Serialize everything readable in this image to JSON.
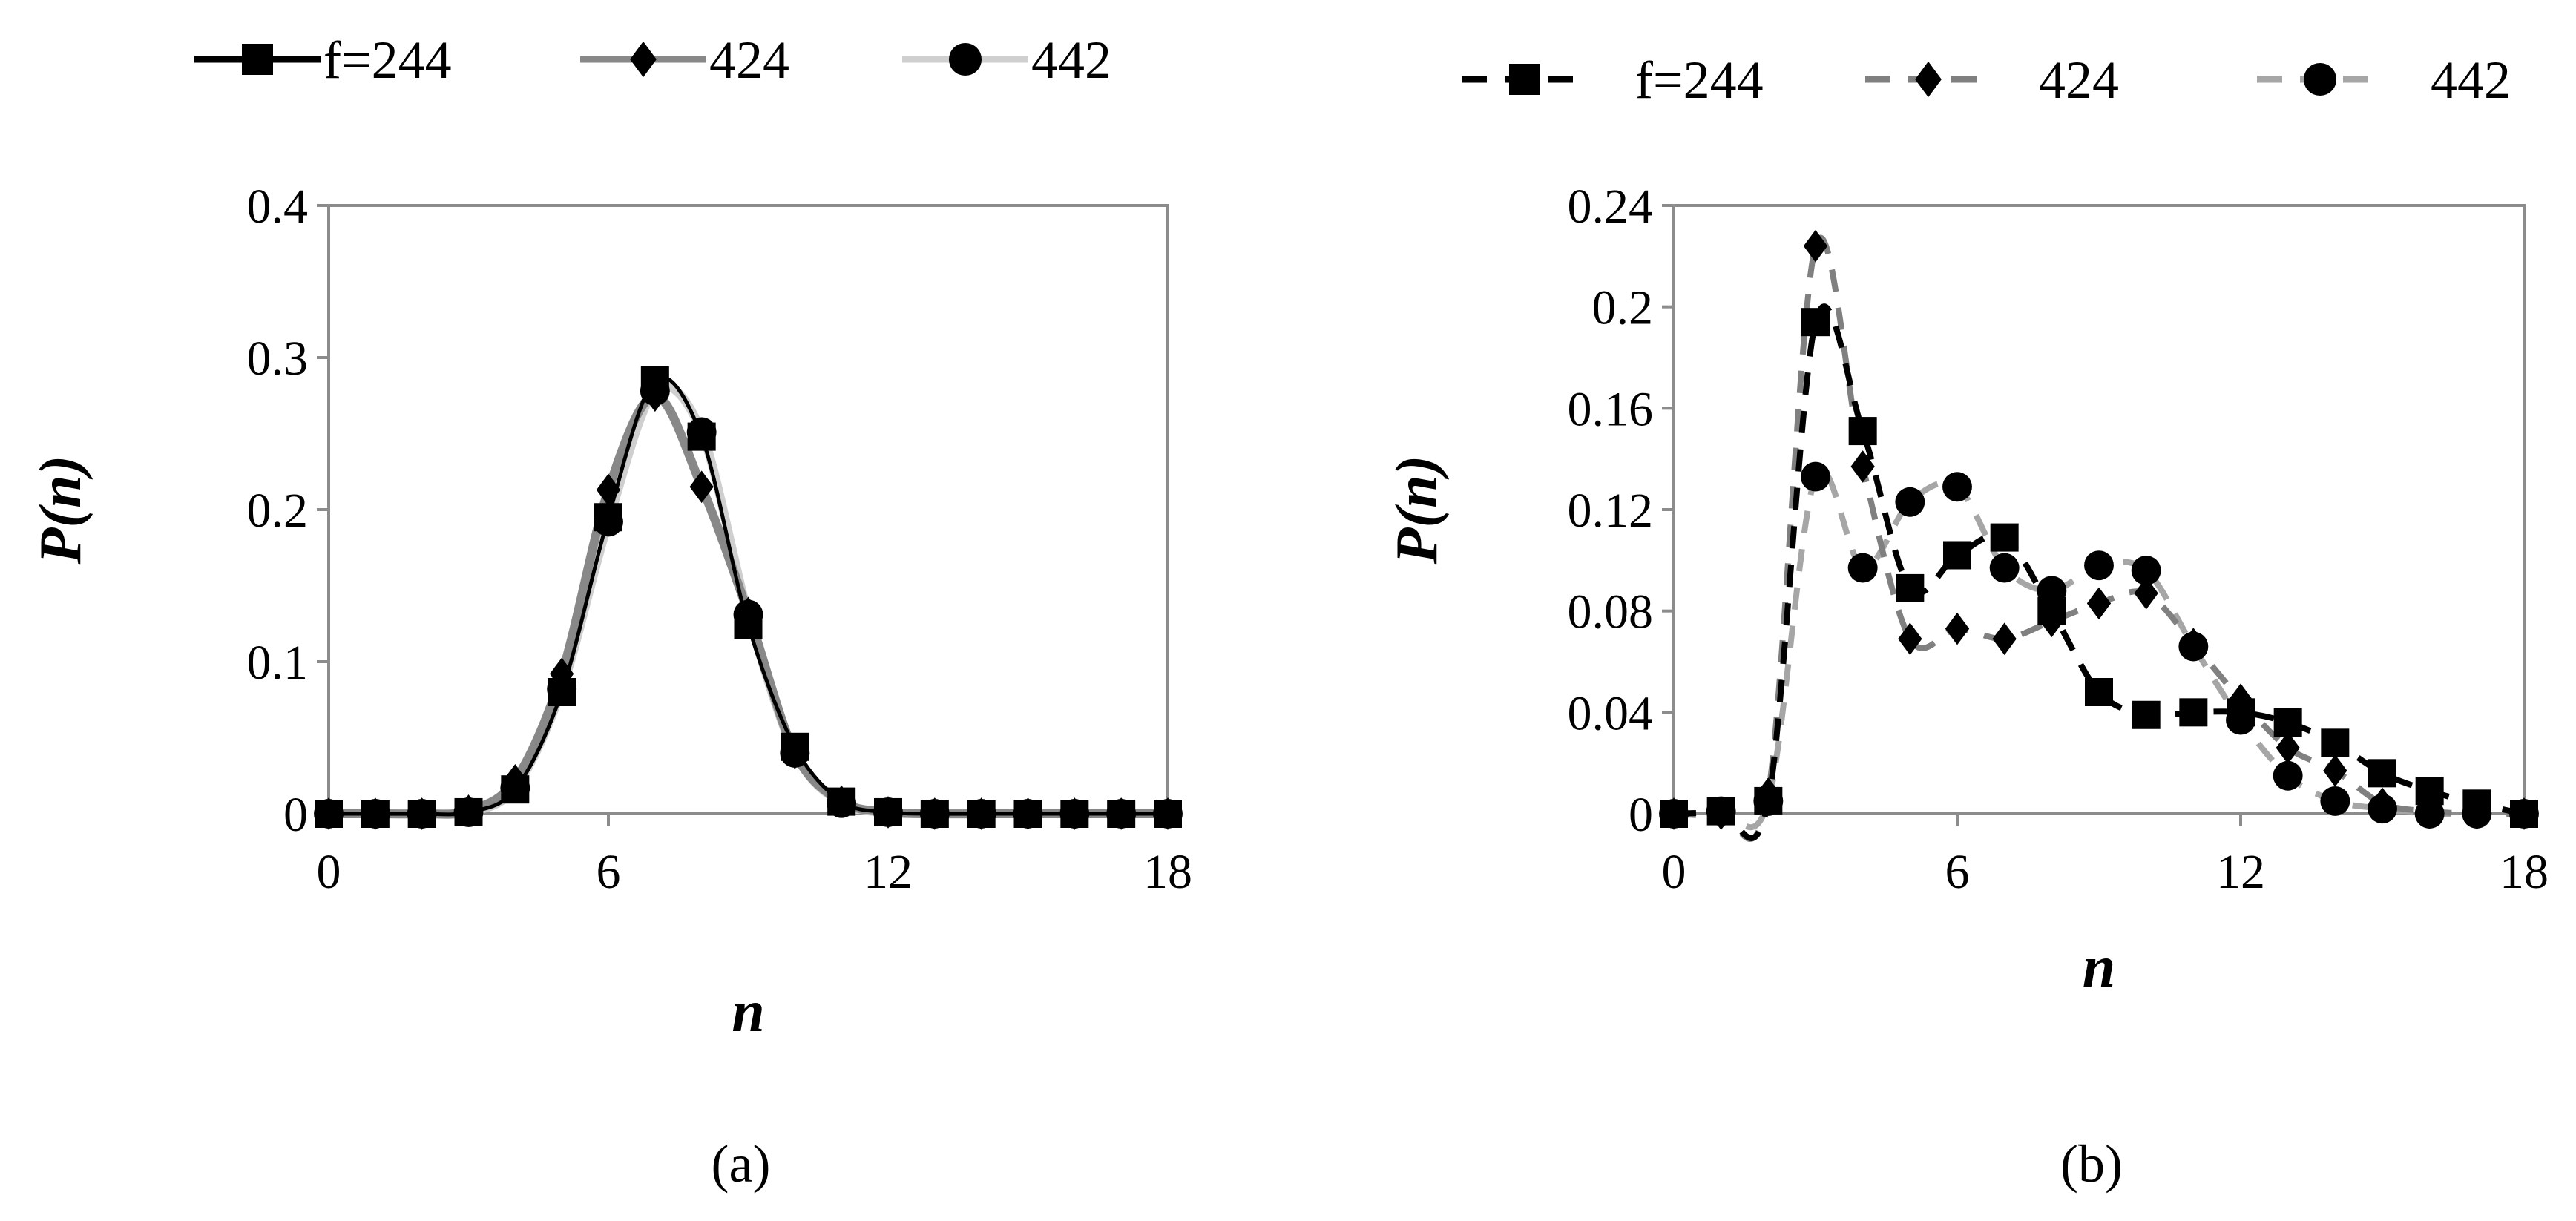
{
  "chart_data": [
    {
      "type": "line",
      "panel_label": "(a)",
      "xlabel": "n",
      "ylabel": "P(n)",
      "xlim": [
        0,
        18
      ],
      "ylim": [
        0,
        0.4
      ],
      "xticks": [
        "0",
        "6",
        "12",
        "18"
      ],
      "yticks": [
        "0",
        "0.1",
        "0.2",
        "0.3",
        "0.4"
      ],
      "legend": "top",
      "grid": false,
      "x": [
        0,
        1,
        2,
        3,
        4,
        5,
        6,
        7,
        8,
        9,
        10,
        11,
        12,
        13,
        14,
        15,
        16,
        17,
        18
      ],
      "series": [
        {
          "name": "f=244",
          "marker": "square",
          "line": "solid",
          "color": "#000000",
          "values": [
            0,
            0,
            0,
            0.001,
            0.016,
            0.08,
            0.195,
            0.285,
            0.248,
            0.124,
            0.044,
            0.008,
            0.001,
            0,
            0,
            0,
            0,
            0,
            0
          ]
        },
        {
          "name": "424",
          "marker": "diamond",
          "line": "solid",
          "color": "#888888",
          "values": [
            0,
            0,
            0,
            0.002,
            0.022,
            0.092,
            0.213,
            0.275,
            0.215,
            0.132,
            0.04,
            0.008,
            0.001,
            0,
            0,
            0,
            0,
            0,
            0
          ]
        },
        {
          "name": "442",
          "marker": "circle",
          "line": "solid",
          "color": "#cfcfcf",
          "values": [
            0,
            0,
            0,
            0.001,
            0.017,
            0.082,
            0.192,
            0.278,
            0.251,
            0.131,
            0.04,
            0.007,
            0.001,
            0,
            0,
            0,
            0,
            0,
            0
          ]
        }
      ]
    },
    {
      "type": "line",
      "panel_label": "(b)",
      "xlabel": "n",
      "ylabel": "P(n)",
      "xlim": [
        0,
        18
      ],
      "ylim": [
        0,
        0.24
      ],
      "xticks": [
        "0",
        "6",
        "12",
        "18"
      ],
      "yticks": [
        "0",
        "0.04",
        "0.08",
        "0.12",
        "0.16",
        "0.2",
        "0.24"
      ],
      "legend": "top",
      "grid": false,
      "x": [
        0,
        1,
        2,
        3,
        4,
        5,
        6,
        7,
        8,
        9,
        10,
        11,
        12,
        13,
        14,
        15,
        16,
        17,
        18
      ],
      "series": [
        {
          "name": "f=244",
          "marker": "square",
          "line": "dashed",
          "color": "#000000",
          "values": [
            0,
            0.001,
            0.005,
            0.194,
            0.151,
            0.089,
            0.102,
            0.109,
            0.08,
            0.048,
            0.039,
            0.04,
            0.04,
            0.036,
            0.028,
            0.016,
            0.009,
            0.004,
            0
          ]
        },
        {
          "name": "424",
          "marker": "diamond",
          "line": "dashed",
          "color": "#808080",
          "values": [
            0,
            0,
            0.008,
            0.224,
            0.137,
            0.069,
            0.073,
            0.069,
            0.076,
            0.083,
            0.087,
            0.067,
            0.045,
            0.026,
            0.017,
            0.004,
            0.001,
            0,
            0
          ]
        },
        {
          "name": "442",
          "marker": "circle",
          "line": "dashed",
          "color": "#a6a6a6",
          "values": [
            0,
            0.001,
            0.005,
            0.133,
            0.097,
            0.123,
            0.129,
            0.097,
            0.088,
            0.098,
            0.096,
            0.066,
            0.037,
            0.015,
            0.005,
            0.002,
            0,
            0,
            0
          ]
        }
      ]
    }
  ]
}
